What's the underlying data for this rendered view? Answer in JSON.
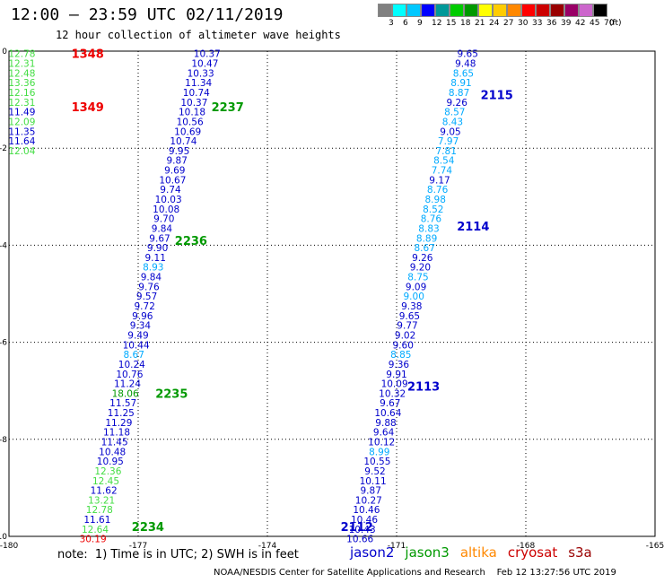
{
  "header": {
    "title": "12:00 — 23:59 UTC 02/11/2019",
    "subtitle": "12 hour collection of altimeter wave heights"
  },
  "legend": {
    "unit": "(ft)",
    "bins": [
      {
        "label": "3",
        "color": "#808080"
      },
      {
        "label": "6",
        "color": "#00ffff"
      },
      {
        "label": "9",
        "color": "#00c8ff"
      },
      {
        "label": "12",
        "color": "#0000ff"
      },
      {
        "label": "15",
        "color": "#009999"
      },
      {
        "label": "18",
        "color": "#00cc00"
      },
      {
        "label": "21",
        "color": "#009900"
      },
      {
        "label": "24",
        "color": "#ffff00"
      },
      {
        "label": "27",
        "color": "#ffcc00"
      },
      {
        "label": "30",
        "color": "#ff8800"
      },
      {
        "label": "33",
        "color": "#ff0000"
      },
      {
        "label": "36",
        "color": "#cc0000"
      },
      {
        "label": "39",
        "color": "#990000"
      },
      {
        "label": "42",
        "color": "#990066"
      },
      {
        "label": "45",
        "color": "#cc66cc"
      },
      {
        "label": "70",
        "color": "#000000"
      }
    ]
  },
  "chart_data": {
    "type": "scatter",
    "title": "12:00 — 23:59 UTC 02/11/2019",
    "subtitle": "12 hour collection of altimeter wave heights",
    "xlim": [
      -180,
      -165
    ],
    "ylim": [
      -10,
      0
    ],
    "x_ticks": [
      "-180",
      "-177",
      "-174",
      "-171",
      "-168",
      "-165"
    ],
    "y_ticks": [
      "0",
      "-2",
      "-4",
      "-6",
      "-8",
      "-10"
    ],
    "grid": true,
    "colors": {
      "jason2": "#0000cc",
      "jason3": "#009900",
      "altika": "#ff8800",
      "cryosat": "#cc0000",
      "s3a": "#990000",
      "light": "#00aaff",
      "lime": "#44dd44"
    },
    "time_labels": [
      {
        "text": "1348",
        "x": -178.55,
        "y": -0.05,
        "color": "#ee0000"
      },
      {
        "text": "1349",
        "x": -178.55,
        "y": -1.15,
        "color": "#ee0000"
      },
      {
        "text": "2237",
        "x": -175.3,
        "y": -1.15,
        "color": "#009900"
      },
      {
        "text": "2236",
        "x": -176.15,
        "y": -3.9,
        "color": "#009900"
      },
      {
        "text": "2235",
        "x": -176.6,
        "y": -7.05,
        "color": "#009900"
      },
      {
        "text": "2234",
        "x": -177.15,
        "y": -9.8,
        "color": "#009900"
      },
      {
        "text": "2115",
        "x": -169.05,
        "y": -0.9,
        "color": "#0000cc"
      },
      {
        "text": "2114",
        "x": -169.6,
        "y": -3.6,
        "color": "#0000cc"
      },
      {
        "text": "2113",
        "x": -170.75,
        "y": -6.9,
        "color": "#0000cc"
      },
      {
        "text": "2112",
        "x": -172.3,
        "y": -9.8,
        "color": "#0000cc"
      }
    ],
    "series": [
      {
        "name": "cryosat-col1",
        "x": -179.7,
        "color": "#44dd44",
        "points": [
          {
            "y": -0.05,
            "v": "12.78"
          },
          {
            "y": -0.25,
            "v": "12.31"
          },
          {
            "y": -0.45,
            "v": "12.48"
          },
          {
            "y": -0.65,
            "v": "13.36"
          },
          {
            "y": -0.85,
            "v": "12.16"
          },
          {
            "y": -1.05,
            "v": "12.31"
          },
          {
            "y": -1.25,
            "v": "11.49",
            "c": "#0000cc"
          },
          {
            "y": -1.45,
            "v": "12.09"
          },
          {
            "y": -1.65,
            "v": "11.35",
            "c": "#0000cc"
          },
          {
            "y": -1.85,
            "v": "11.64",
            "c": "#0000cc"
          },
          {
            "y": -2.05,
            "v": "12.04"
          }
        ]
      },
      {
        "name": "track-2237-2234",
        "color": "#0000cc",
        "points": [
          {
            "x": -175.4,
            "y": -0.05,
            "v": "10.37"
          },
          {
            "x": -175.45,
            "y": -0.25,
            "v": "10.47"
          },
          {
            "x": -175.55,
            "y": -0.45,
            "v": "10.33"
          },
          {
            "x": -175.6,
            "y": -0.65,
            "v": "11.34"
          },
          {
            "x": -175.65,
            "y": -0.85,
            "v": "10.74"
          },
          {
            "x": -175.7,
            "y": -1.05,
            "v": "10.37"
          },
          {
            "x": -175.75,
            "y": -1.25,
            "v": "10.18"
          },
          {
            "x": -175.8,
            "y": -1.45,
            "v": "10.56"
          },
          {
            "x": -175.85,
            "y": -1.65,
            "v": "10.69"
          },
          {
            "x": -175.95,
            "y": -1.85,
            "v": "10.74"
          },
          {
            "x": -176.05,
            "y": -2.05,
            "v": "9.95"
          },
          {
            "x": -176.1,
            "y": -2.25,
            "v": "9.87"
          },
          {
            "x": -176.15,
            "y": -2.45,
            "v": "9.69"
          },
          {
            "x": -176.2,
            "y": -2.65,
            "v": "10.67"
          },
          {
            "x": -176.25,
            "y": -2.85,
            "v": "9.74"
          },
          {
            "x": -176.3,
            "y": -3.05,
            "v": "10.03"
          },
          {
            "x": -176.35,
            "y": -3.25,
            "v": "10.08"
          },
          {
            "x": -176.4,
            "y": -3.45,
            "v": "9.70"
          },
          {
            "x": -176.45,
            "y": -3.65,
            "v": "9.84"
          },
          {
            "x": -176.5,
            "y": -3.85,
            "v": "9.67"
          },
          {
            "x": -176.55,
            "y": -4.05,
            "v": "9.90"
          },
          {
            "x": -176.6,
            "y": -4.25,
            "v": "9.11"
          },
          {
            "x": -176.65,
            "y": -4.45,
            "v": "8.93",
            "c": "#00aaff"
          },
          {
            "x": -176.7,
            "y": -4.65,
            "v": "9.84"
          },
          {
            "x": -176.75,
            "y": -4.85,
            "v": "9.76"
          },
          {
            "x": -176.8,
            "y": -5.05,
            "v": "9.57"
          },
          {
            "x": -176.85,
            "y": -5.25,
            "v": "9.72"
          },
          {
            "x": -176.9,
            "y": -5.45,
            "v": "9.96"
          },
          {
            "x": -176.95,
            "y": -5.65,
            "v": "9.34"
          },
          {
            "x": -177.0,
            "y": -5.85,
            "v": "9.49"
          },
          {
            "x": -177.05,
            "y": -6.05,
            "v": "10.44"
          },
          {
            "x": -177.1,
            "y": -6.25,
            "v": "8.67",
            "c": "#00aaff"
          },
          {
            "x": -177.15,
            "y": -6.45,
            "v": "10.24"
          },
          {
            "x": -177.2,
            "y": -6.65,
            "v": "10.76"
          },
          {
            "x": -177.25,
            "y": -6.85,
            "v": "11.24"
          },
          {
            "x": -177.3,
            "y": -7.05,
            "v": "18.06",
            "c": "#009900"
          },
          {
            "x": -177.35,
            "y": -7.25,
            "v": "11.57"
          },
          {
            "x": -177.4,
            "y": -7.45,
            "v": "11.25"
          },
          {
            "x": -177.45,
            "y": -7.65,
            "v": "11.29"
          },
          {
            "x": -177.5,
            "y": -7.85,
            "v": "11.18"
          },
          {
            "x": -177.55,
            "y": -8.05,
            "v": "11.45"
          },
          {
            "x": -177.6,
            "y": -8.25,
            "v": "10.48"
          },
          {
            "x": -177.65,
            "y": -8.45,
            "v": "10.95"
          },
          {
            "x": -177.7,
            "y": -8.65,
            "v": "12.36",
            "c": "#44dd44"
          },
          {
            "x": -177.75,
            "y": -8.85,
            "v": "12.45",
            "c": "#44dd44"
          },
          {
            "x": -177.8,
            "y": -9.05,
            "v": "11.62"
          },
          {
            "x": -177.85,
            "y": -9.25,
            "v": "13.21",
            "c": "#44dd44"
          },
          {
            "x": -177.9,
            "y": -9.45,
            "v": "12.78",
            "c": "#44dd44"
          },
          {
            "x": -177.95,
            "y": -9.65,
            "v": "11.61"
          },
          {
            "x": -178.0,
            "y": -9.85,
            "v": "12.64",
            "c": "#44dd44"
          },
          {
            "x": -178.05,
            "y": -10.05,
            "v": "30.19",
            "c": "#ee0000"
          }
        ]
      },
      {
        "name": "track-2115-2112",
        "color": "#0000cc",
        "points": [
          {
            "x": -169.35,
            "y": -0.05,
            "v": "9.65"
          },
          {
            "x": -169.4,
            "y": -0.25,
            "v": "9.48"
          },
          {
            "x": -169.45,
            "y": -0.45,
            "v": "8.65",
            "c": "#00aaff"
          },
          {
            "x": -169.5,
            "y": -0.65,
            "v": "8.91",
            "c": "#00aaff"
          },
          {
            "x": -169.55,
            "y": -0.85,
            "v": "8.87",
            "c": "#00aaff"
          },
          {
            "x": -169.6,
            "y": -1.05,
            "v": "9.26"
          },
          {
            "x": -169.65,
            "y": -1.25,
            "v": "8.57",
            "c": "#00aaff"
          },
          {
            "x": -169.7,
            "y": -1.45,
            "v": "8.43",
            "c": "#00aaff"
          },
          {
            "x": -169.75,
            "y": -1.65,
            "v": "9.05"
          },
          {
            "x": -169.8,
            "y": -1.85,
            "v": "7.97",
            "c": "#00aaff"
          },
          {
            "x": -169.85,
            "y": -2.05,
            "v": "7.81",
            "c": "#00aaff"
          },
          {
            "x": -169.9,
            "y": -2.25,
            "v": "8.54",
            "c": "#00aaff"
          },
          {
            "x": -169.95,
            "y": -2.45,
            "v": "7.74",
            "c": "#00aaff"
          },
          {
            "x": -170.0,
            "y": -2.65,
            "v": "9.17"
          },
          {
            "x": -170.05,
            "y": -2.85,
            "v": "8.76",
            "c": "#00aaff"
          },
          {
            "x": -170.1,
            "y": -3.05,
            "v": "8.98",
            "c": "#00aaff"
          },
          {
            "x": -170.15,
            "y": -3.25,
            "v": "8.52",
            "c": "#00aaff"
          },
          {
            "x": -170.2,
            "y": -3.45,
            "v": "8.76",
            "c": "#00aaff"
          },
          {
            "x": -170.25,
            "y": -3.65,
            "v": "8.83",
            "c": "#00aaff"
          },
          {
            "x": -170.3,
            "y": -3.85,
            "v": "8.89",
            "c": "#00aaff"
          },
          {
            "x": -170.35,
            "y": -4.05,
            "v": "8.67",
            "c": "#00aaff"
          },
          {
            "x": -170.4,
            "y": -4.25,
            "v": "9.26"
          },
          {
            "x": -170.45,
            "y": -4.45,
            "v": "9.20"
          },
          {
            "x": -170.5,
            "y": -4.65,
            "v": "8.75",
            "c": "#00aaff"
          },
          {
            "x": -170.55,
            "y": -4.85,
            "v": "9.09"
          },
          {
            "x": -170.6,
            "y": -5.05,
            "v": "9.00",
            "c": "#00aaff"
          },
          {
            "x": -170.65,
            "y": -5.25,
            "v": "9.38"
          },
          {
            "x": -170.7,
            "y": -5.45,
            "v": "9.65"
          },
          {
            "x": -170.75,
            "y": -5.65,
            "v": "9.77"
          },
          {
            "x": -170.8,
            "y": -5.85,
            "v": "9.02"
          },
          {
            "x": -170.85,
            "y": -6.05,
            "v": "9.60"
          },
          {
            "x": -170.9,
            "y": -6.25,
            "v": "8.85",
            "c": "#00aaff"
          },
          {
            "x": -170.95,
            "y": -6.45,
            "v": "9.36"
          },
          {
            "x": -171.0,
            "y": -6.65,
            "v": "9.91"
          },
          {
            "x": -171.05,
            "y": -6.85,
            "v": "10.09"
          },
          {
            "x": -171.1,
            "y": -7.05,
            "v": "10.32"
          },
          {
            "x": -171.15,
            "y": -7.25,
            "v": "9.67"
          },
          {
            "x": -171.2,
            "y": -7.45,
            "v": "10.64"
          },
          {
            "x": -171.25,
            "y": -7.65,
            "v": "9.88"
          },
          {
            "x": -171.3,
            "y": -7.85,
            "v": "9.64"
          },
          {
            "x": -171.35,
            "y": -8.05,
            "v": "10.12"
          },
          {
            "x": -171.4,
            "y": -8.25,
            "v": "8.99",
            "c": "#00aaff"
          },
          {
            "x": -171.45,
            "y": -8.45,
            "v": "10.55"
          },
          {
            "x": -171.5,
            "y": -8.65,
            "v": "9.52"
          },
          {
            "x": -171.55,
            "y": -8.85,
            "v": "10.11"
          },
          {
            "x": -171.6,
            "y": -9.05,
            "v": "9.87"
          },
          {
            "x": -171.65,
            "y": -9.25,
            "v": "10.27"
          },
          {
            "x": -171.7,
            "y": -9.45,
            "v": "10.46"
          },
          {
            "x": -171.75,
            "y": -9.65,
            "v": "10.46"
          },
          {
            "x": -171.8,
            "y": -9.85,
            "v": "10.43"
          },
          {
            "x": -171.85,
            "y": -10.05,
            "v": "10.66"
          }
        ]
      }
    ]
  },
  "note": "note:  1) Time is in UTC; 2) SWH is in feet",
  "satellites": [
    {
      "label": "jason2",
      "color": "#0000cc"
    },
    {
      "label": "jason3",
      "color": "#009900"
    },
    {
      "label": "altika",
      "color": "#ff8800"
    },
    {
      "label": "cryosat",
      "color": "#cc0000"
    },
    {
      "label": "s3a",
      "color": "#990000"
    }
  ],
  "footer": "NOAA/NESDIS Center for Satellite Applications and Research    Feb 12 13:27:56 UTC 2019"
}
